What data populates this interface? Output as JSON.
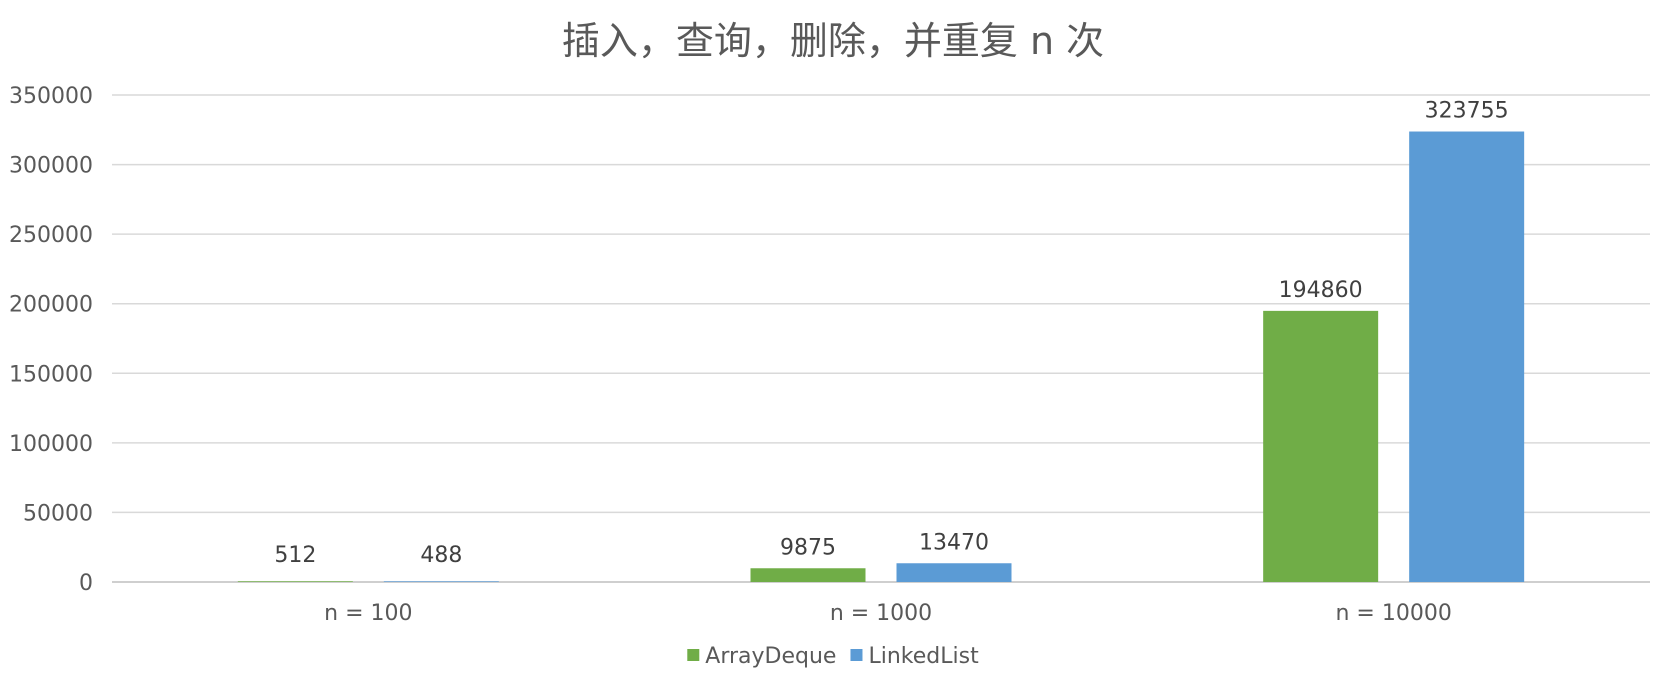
{
  "chart_data": {
    "type": "bar",
    "title": "插入，查询，删除，并重复 n 次",
    "xlabel": "",
    "ylabel": "",
    "categories": [
      "n = 100",
      "n = 1000",
      "n = 10000"
    ],
    "series": [
      {
        "name": "ArrayDeque",
        "values": [
          512,
          9875,
          194860
        ],
        "color": "#70ad47"
      },
      {
        "name": "LinkedList",
        "values": [
          488,
          13470,
          323755
        ],
        "color": "#5b9bd5"
      }
    ],
    "ylim": [
      0,
      350000
    ],
    "yticks": [
      0,
      50000,
      100000,
      150000,
      200000,
      250000,
      300000,
      350000
    ],
    "ytick_labels": [
      "0",
      "50000",
      "100000",
      "150000",
      "200000",
      "250000",
      "300000",
      "350000"
    ],
    "data_labels": true,
    "grid": true,
    "legend_position": "bottom"
  }
}
